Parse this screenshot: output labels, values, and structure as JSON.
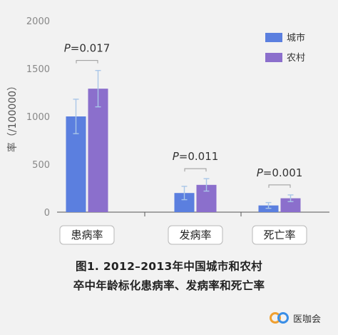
{
  "chart_data": {
    "type": "bar",
    "categories": [
      "患病率",
      "发病率",
      "死亡率"
    ],
    "series": [
      {
        "name": "城市",
        "color": "#5b7fdf",
        "values": [
          1000,
          200,
          70
        ],
        "err": [
          180,
          70,
          30
        ]
      },
      {
        "name": "农村",
        "color": "#8b6fcc",
        "values": [
          1290,
          285,
          145
        ],
        "err": [
          190,
          65,
          35
        ]
      }
    ],
    "ylabel": "率（/100000）",
    "yticks": [
      0,
      500,
      1000,
      1500,
      2000
    ],
    "ylim": [
      0,
      2000
    ],
    "annotations": [
      "P=0.017",
      "P=0.011",
      "P=0.001"
    ],
    "legend_position": "top-right",
    "grid": false
  },
  "caption": {
    "line1": "图1. 2012–2013年中国城市和农村",
    "line2": "卒中年龄标化患病率、发病率和死亡率"
  },
  "brand": {
    "name": "医咖会",
    "icon": "link-logo-icon"
  }
}
